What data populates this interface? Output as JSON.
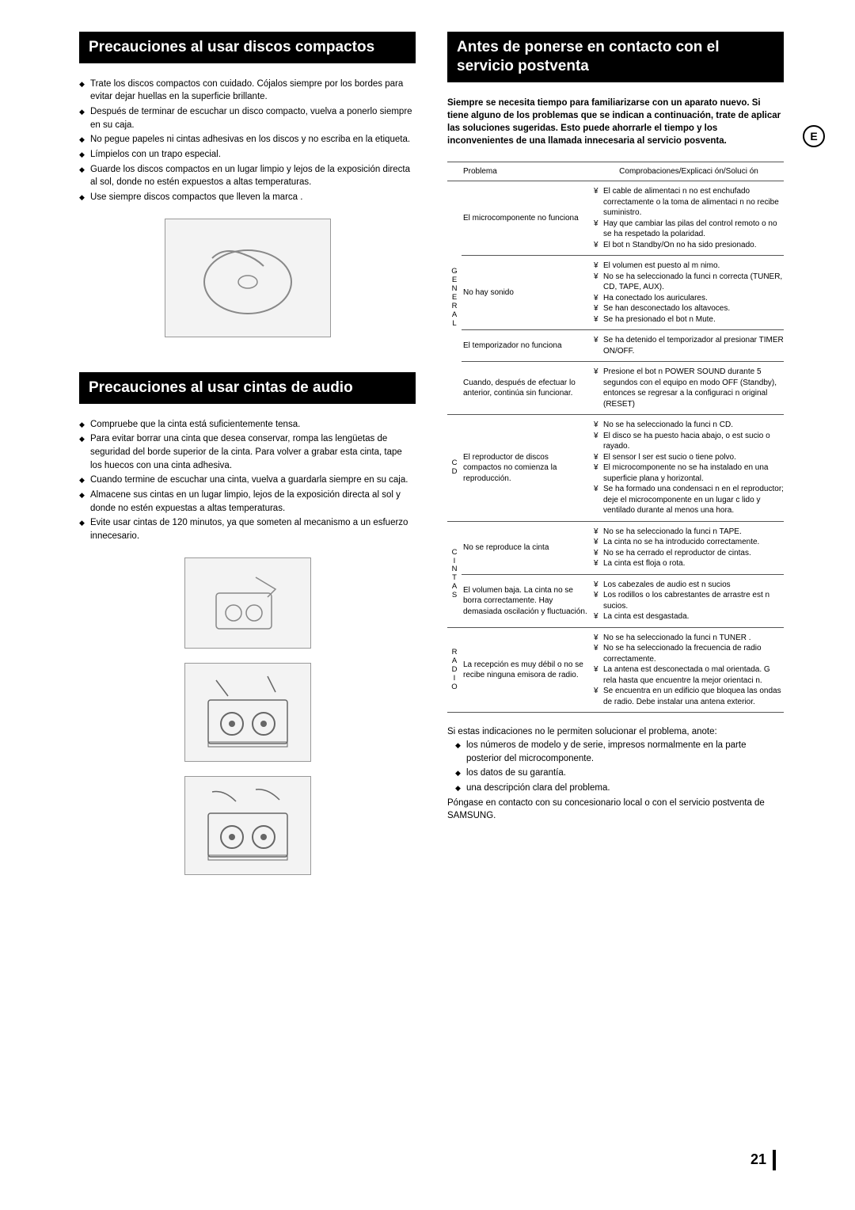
{
  "left": {
    "header1": "Precauciones al usar discos compactos",
    "cd_list": [
      "Trate los discos compactos con cuidado. Cójalos siempre por los bordes para evitar dejar huellas en la superficie brillante.",
      "Después de terminar de escuchar un disco compacto, vuelva a ponerlo siempre en su caja.",
      "No pegue papeles ni cintas adhesivas en los discos y no escriba en la etiqueta.",
      "Límpielos con un trapo especial.",
      "Guarde los discos compactos en un lugar limpio y lejos de la exposición directa al sol, donde no estén expuestos a altas temperaturas.",
      "Use siempre discos compactos que lleven la marca        ."
    ],
    "header2": "Precauciones al usar cintas de audio",
    "tape_list": [
      "Compruebe que la cinta está suficientemente tensa.",
      "Para evitar borrar una cinta que desea conservar, rompa las lengüetas de seguridad del borde superior de la cinta. Para volver a grabar esta cinta, tape los huecos con una cinta adhesiva.",
      "Cuando termine de escuchar una cinta, vuelva a guardarla siempre en su caja.",
      "Almacene sus cintas en un lugar limpio, lejos de la exposición directa al sol y donde no estén expuestas a altas temperaturas.",
      "Evite usar cintas de 120 minutos, ya que someten al mecanismo a un esfuerzo innecesario."
    ]
  },
  "right": {
    "header": "Antes de ponerse en contacto con el servicio postventa",
    "intro": "Siempre se necesita tiempo para familiarizarse con un aparato nuevo. Si tiene alguno de los problemas que se indican a continuación, trate de aplicar las soluciones sugeridas. Esto puede ahorrarle el tiempo y los inconvenientes de una llamada innecesaria al servicio posventa.",
    "table_head_prob": "Problema",
    "table_head_sol": "Comprobaciones/Explicaci ón/Soluci ón",
    "groups": [
      {
        "cat": "GENERAL",
        "rows": [
          {
            "problem": "El microcomponente no funciona",
            "solutions": [
              "El cable de alimentaci n no est  enchufado correctamente o la toma de alimentaci n no recibe suministro.",
              "Hay que cambiar las pilas del control remoto o no se ha respetado la polaridad.",
              "El bot n Standby/On  no ha sido presionado."
            ]
          },
          {
            "problem": "No hay sonido",
            "solutions": [
              "El volumen est  puesto al m nimo.",
              "No se ha seleccionado la funci n correcta (TUNER, CD, TAPE, AUX).",
              "Ha conectado los auriculares.",
              "Se han desconectado los altavoces.",
              "Se ha presionado el bot n Mute."
            ]
          },
          {
            "problem": "El temporizador no funciona",
            "solutions": [
              "Se ha detenido el temporizador al presionar TIMER ON/OFF."
            ]
          },
          {
            "problem": "Cuando, después de efectuar lo anterior, continúa sin funcionar.",
            "solutions": [
              "Presione el bot n POWER SOUND durante 5 segundos con el equipo en modo OFF (Standby), entonces se regresar  a la configuraci n original (RESET)"
            ]
          }
        ]
      },
      {
        "cat": "CD",
        "rows": [
          {
            "problem": "El reproductor de discos compactos no comienza la reproducción.",
            "solutions": [
              "No se ha seleccionado la funci n CD.",
              "El disco se ha puesto hacia abajo, o est  sucio o rayado.",
              "El sensor l ser est  sucio o tiene polvo.",
              "El microcomponente no se ha instalado en una superficie plana y horizontal.",
              "Se ha formado una condensaci n en el reproductor; deje el microcomponente en un lugar c lido y ventilado durante al menos una hora."
            ]
          }
        ]
      },
      {
        "cat": "CINTAS",
        "rows": [
          {
            "problem": "No se reproduce la cinta",
            "solutions": [
              "No se ha seleccionado la funci n TAPE.",
              "La cinta no se ha introducido correctamente.",
              "No se ha cerrado el reproductor de cintas.",
              "La cinta est  floja o rota."
            ]
          },
          {
            "problem": "El volumen baja. La cinta no se borra correctamente. Hay demasiada oscilación y fluctuación.",
            "solutions": [
              "Los cabezales de audio est n sucios",
              "Los rodillos o los cabrestantes de arrastre est n sucios.",
              "La cinta est  desgastada."
            ]
          }
        ]
      },
      {
        "cat": "RADIO",
        "rows": [
          {
            "problem": "La recepción es muy débil o no se recibe ninguna emisora de radio.",
            "solutions": [
              "No se ha seleccionado la funci n TUNER .",
              "No se ha seleccionado la frecuencia de radio correctamente.",
              "La antena est  desconectada o mal orientada. G rela hasta que encuentre la mejor orientaci n.",
              "Se encuentra en un edificio que bloquea las ondas de radio. Debe instalar una antena exterior."
            ]
          }
        ]
      }
    ],
    "footer_lead": "Si estas indicaciones no le permiten solucionar el problema, anote:",
    "footer_list": [
      "los números de modelo y de serie, impresos normalmente en la parte posterior del microcomponente.",
      "los datos de su garantía.",
      "una descripción clara del problema."
    ],
    "footer_tail": "Póngase en contacto con su concesionario local o con el servicio postventa de SAMSUNG."
  },
  "circle_letter": "E",
  "page_number": "21"
}
